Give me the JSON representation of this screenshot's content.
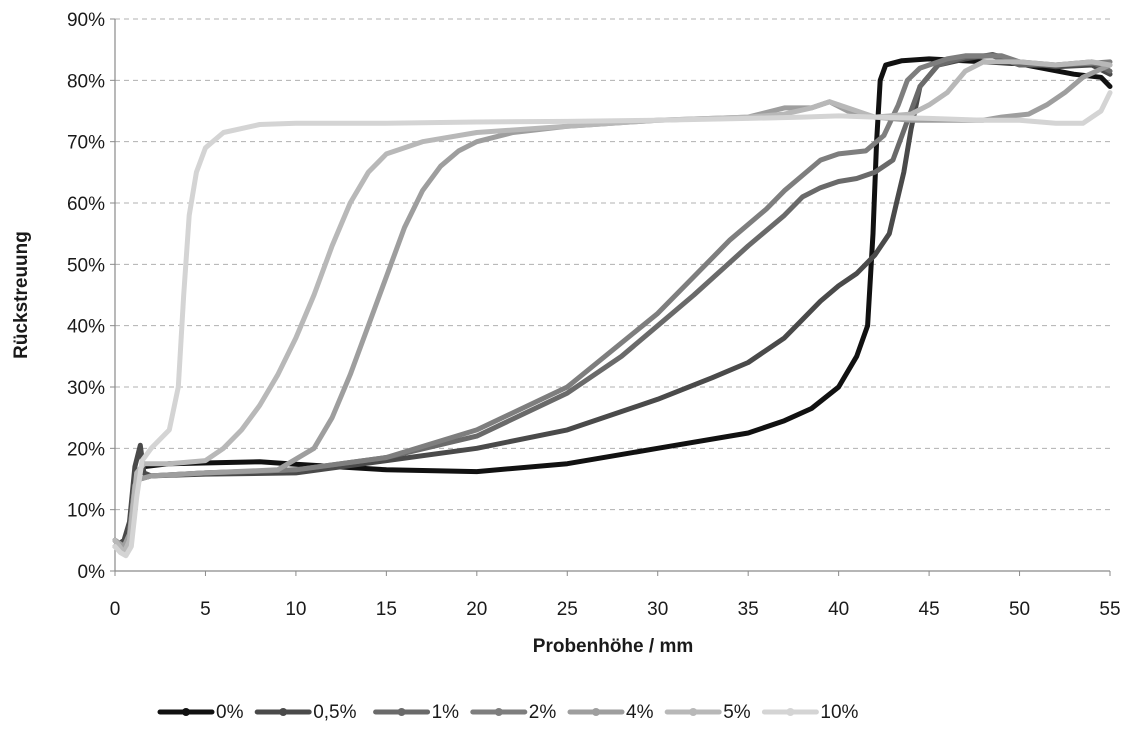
{
  "chart_data": {
    "type": "line",
    "title": "",
    "xlabel": "Probenhöhe / mm",
    "ylabel": "Rückstreuung",
    "xlim": [
      0,
      55
    ],
    "ylim": [
      0,
      90
    ],
    "x_ticks": [
      "0",
      "5",
      "10",
      "15",
      "20",
      "25",
      "30",
      "35",
      "40",
      "45",
      "50",
      "55"
    ],
    "y_ticks": [
      "0%",
      "10%",
      "20%",
      "30%",
      "40%",
      "50%",
      "60%",
      "70%",
      "80%",
      "90%"
    ],
    "grid": "horizontal dashed",
    "legend_position": "bottom",
    "series": [
      {
        "name": "0%",
        "color": "#111111",
        "points": [
          [
            0,
            5
          ],
          [
            0.5,
            3
          ],
          [
            0.8,
            4
          ],
          [
            1.2,
            15
          ],
          [
            1.6,
            17
          ],
          [
            3,
            17.5
          ],
          [
            8,
            17.8
          ],
          [
            10,
            17.4
          ],
          [
            15,
            16.5
          ],
          [
            20,
            16.2
          ],
          [
            25,
            17.5
          ],
          [
            30,
            20
          ],
          [
            35,
            22.5
          ],
          [
            37,
            24.5
          ],
          [
            38.5,
            26.5
          ],
          [
            40,
            30
          ],
          [
            41,
            35
          ],
          [
            41.6,
            40
          ],
          [
            41.9,
            55
          ],
          [
            42.1,
            70
          ],
          [
            42.3,
            80
          ],
          [
            42.6,
            82.5
          ],
          [
            43.5,
            83.2
          ],
          [
            45,
            83.5
          ],
          [
            50,
            82.7
          ],
          [
            53,
            81
          ],
          [
            54.5,
            80.5
          ],
          [
            55,
            79
          ]
        ]
      },
      {
        "name": "0,5%",
        "color": "#4a4a4a",
        "points": [
          [
            0,
            4
          ],
          [
            0.5,
            5
          ],
          [
            0.8,
            8
          ],
          [
            1.1,
            17
          ],
          [
            1.4,
            20.5
          ],
          [
            1.6,
            16
          ],
          [
            2,
            15.5
          ],
          [
            5,
            15.8
          ],
          [
            10,
            16
          ],
          [
            15,
            18
          ],
          [
            20,
            20
          ],
          [
            25,
            23
          ],
          [
            30,
            28
          ],
          [
            33,
            31.5
          ],
          [
            35,
            34
          ],
          [
            37,
            38
          ],
          [
            38,
            41
          ],
          [
            39,
            44
          ],
          [
            40,
            46.5
          ],
          [
            41,
            48.5
          ],
          [
            42,
            51.5
          ],
          [
            42.8,
            55
          ],
          [
            43.2,
            60
          ],
          [
            43.6,
            65
          ],
          [
            44,
            72
          ],
          [
            44.5,
            79
          ],
          [
            45.5,
            82.5
          ],
          [
            47,
            83.5
          ],
          [
            48.5,
            84.2
          ],
          [
            50,
            83
          ],
          [
            52,
            82.2
          ],
          [
            54,
            82.5
          ],
          [
            55,
            81
          ]
        ]
      },
      {
        "name": "1%",
        "color": "#6a6a6a",
        "points": [
          [
            0,
            5
          ],
          [
            0.5,
            4
          ],
          [
            0.8,
            6
          ],
          [
            1.1,
            14
          ],
          [
            1.4,
            15
          ],
          [
            2,
            15.5
          ],
          [
            5,
            16
          ],
          [
            10,
            16.5
          ],
          [
            15,
            18.5
          ],
          [
            20,
            22
          ],
          [
            25,
            29
          ],
          [
            28,
            35
          ],
          [
            30,
            40
          ],
          [
            32,
            45
          ],
          [
            35,
            53
          ],
          [
            37,
            58
          ],
          [
            38,
            61
          ],
          [
            39,
            62.5
          ],
          [
            40,
            63.5
          ],
          [
            41,
            64
          ],
          [
            42,
            65
          ],
          [
            43,
            67
          ],
          [
            43.5,
            71
          ],
          [
            44,
            75
          ],
          [
            44.5,
            79
          ],
          [
            45.5,
            82.5
          ],
          [
            47,
            83.8
          ],
          [
            48.5,
            84
          ],
          [
            50,
            82.5
          ],
          [
            52,
            82.5
          ],
          [
            54,
            83
          ],
          [
            55,
            81.5
          ]
        ]
      },
      {
        "name": "2%",
        "color": "#7e7e7e",
        "points": [
          [
            0,
            5
          ],
          [
            0.5,
            4
          ],
          [
            0.8,
            6
          ],
          [
            1.1,
            14
          ],
          [
            1.4,
            15
          ],
          [
            2,
            15.5
          ],
          [
            5,
            16
          ],
          [
            10,
            16.5
          ],
          [
            15,
            18.5
          ],
          [
            20,
            23
          ],
          [
            25,
            30
          ],
          [
            30,
            42
          ],
          [
            32,
            48
          ],
          [
            34,
            54
          ],
          [
            36,
            59
          ],
          [
            37,
            62
          ],
          [
            38,
            64.5
          ],
          [
            39,
            67
          ],
          [
            40,
            68
          ],
          [
            41.5,
            68.5
          ],
          [
            42.5,
            71
          ],
          [
            43.3,
            76
          ],
          [
            43.8,
            80
          ],
          [
            44.5,
            82
          ],
          [
            46,
            83.5
          ],
          [
            47,
            84
          ],
          [
            49,
            84
          ],
          [
            50,
            83
          ],
          [
            52,
            82.5
          ],
          [
            54,
            82.8
          ],
          [
            55,
            83
          ]
        ]
      },
      {
        "name": "4%",
        "color": "#9e9e9e",
        "points": [
          [
            0,
            5
          ],
          [
            0.5,
            4
          ],
          [
            0.8,
            6
          ],
          [
            1.1,
            14
          ],
          [
            1.4,
            15
          ],
          [
            2,
            15.5
          ],
          [
            5,
            16
          ],
          [
            9,
            16.5
          ],
          [
            11,
            20
          ],
          [
            12,
            25
          ],
          [
            13,
            32
          ],
          [
            14,
            40
          ],
          [
            15,
            48
          ],
          [
            16,
            56
          ],
          [
            17,
            62
          ],
          [
            18,
            66
          ],
          [
            19,
            68.5
          ],
          [
            20,
            70
          ],
          [
            22,
            71.5
          ],
          [
            25,
            72.5
          ],
          [
            30,
            73.5
          ],
          [
            35,
            74
          ],
          [
            37,
            75.5
          ],
          [
            38.5,
            75.5
          ],
          [
            39.5,
            76.5
          ],
          [
            40.5,
            75
          ],
          [
            42,
            74
          ],
          [
            44,
            73.5
          ],
          [
            46,
            73.5
          ],
          [
            48,
            73.5
          ],
          [
            49,
            74
          ],
          [
            50.5,
            74.5
          ],
          [
            51.5,
            76
          ],
          [
            52.5,
            78
          ],
          [
            53.5,
            80.5
          ],
          [
            55,
            82.5
          ]
        ]
      },
      {
        "name": "5%",
        "color": "#b8b8b8",
        "points": [
          [
            0,
            5
          ],
          [
            0.5,
            3
          ],
          [
            0.8,
            5
          ],
          [
            1.2,
            16
          ],
          [
            1.6,
            17.5
          ],
          [
            3,
            17.5
          ],
          [
            5,
            18
          ],
          [
            6,
            20
          ],
          [
            7,
            23
          ],
          [
            8,
            27
          ],
          [
            9,
            32
          ],
          [
            10,
            38
          ],
          [
            11,
            45
          ],
          [
            12,
            53
          ],
          [
            13,
            60
          ],
          [
            14,
            65
          ],
          [
            15,
            68
          ],
          [
            17,
            70
          ],
          [
            20,
            71.5
          ],
          [
            25,
            72.5
          ],
          [
            30,
            73.5
          ],
          [
            35,
            74
          ],
          [
            37,
            74.5
          ],
          [
            38.5,
            75.5
          ],
          [
            39.5,
            76.5
          ],
          [
            40.5,
            75.5
          ],
          [
            42,
            74
          ],
          [
            44,
            74.5
          ],
          [
            45,
            76
          ],
          [
            46,
            78
          ],
          [
            47,
            81.5
          ],
          [
            48,
            83
          ],
          [
            50,
            83
          ],
          [
            52,
            82.5
          ],
          [
            54,
            83
          ],
          [
            55,
            82.5
          ]
        ]
      },
      {
        "name": "10%",
        "color": "#d4d4d4",
        "points": [
          [
            0,
            4
          ],
          [
            0.3,
            3
          ],
          [
            0.6,
            2.5
          ],
          [
            0.9,
            4
          ],
          [
            1.2,
            12
          ],
          [
            1.5,
            18
          ],
          [
            2,
            20
          ],
          [
            3,
            23
          ],
          [
            3.5,
            30
          ],
          [
            3.8,
            45
          ],
          [
            4.1,
            58
          ],
          [
            4.5,
            65
          ],
          [
            5,
            69
          ],
          [
            6,
            71.5
          ],
          [
            8,
            72.8
          ],
          [
            10,
            73
          ],
          [
            15,
            73
          ],
          [
            20,
            73.2
          ],
          [
            25,
            73.3
          ],
          [
            30,
            73.5
          ],
          [
            35,
            73.8
          ],
          [
            38,
            74
          ],
          [
            40,
            74.2
          ],
          [
            42,
            74
          ],
          [
            45,
            73.8
          ],
          [
            48,
            73.5
          ],
          [
            50,
            73.5
          ],
          [
            52,
            73
          ],
          [
            53.5,
            73
          ],
          [
            54.5,
            75
          ],
          [
            55,
            78
          ]
        ]
      }
    ]
  }
}
